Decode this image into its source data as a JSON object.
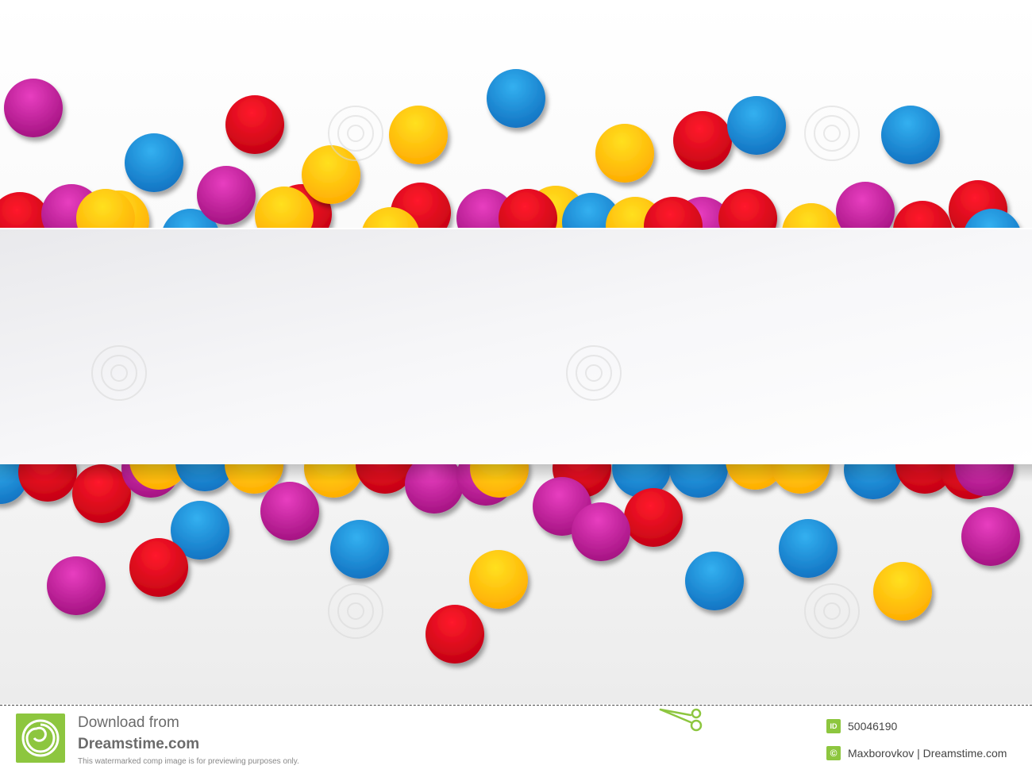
{
  "footer": {
    "download_line1": "Download from",
    "download_line2": "Dreamstime.com",
    "disclaimer": "This watermarked comp image is for previewing purposes only.",
    "id_badge": "ID",
    "image_id": "50046190",
    "copyright_symbol": "©",
    "author_credit": "Maxborovkov | Dreamstime.com",
    "logo_icon": "dreamstime-spiral-icon",
    "scissors_icon": "scissors-icon"
  },
  "palette": {
    "magenta": "#c41a9c",
    "red": "#e0001b",
    "blue": "#1b95dc",
    "yellow": "#ffc800",
    "banner": "#f2f2f4",
    "brand_green": "#8dc63f"
  }
}
